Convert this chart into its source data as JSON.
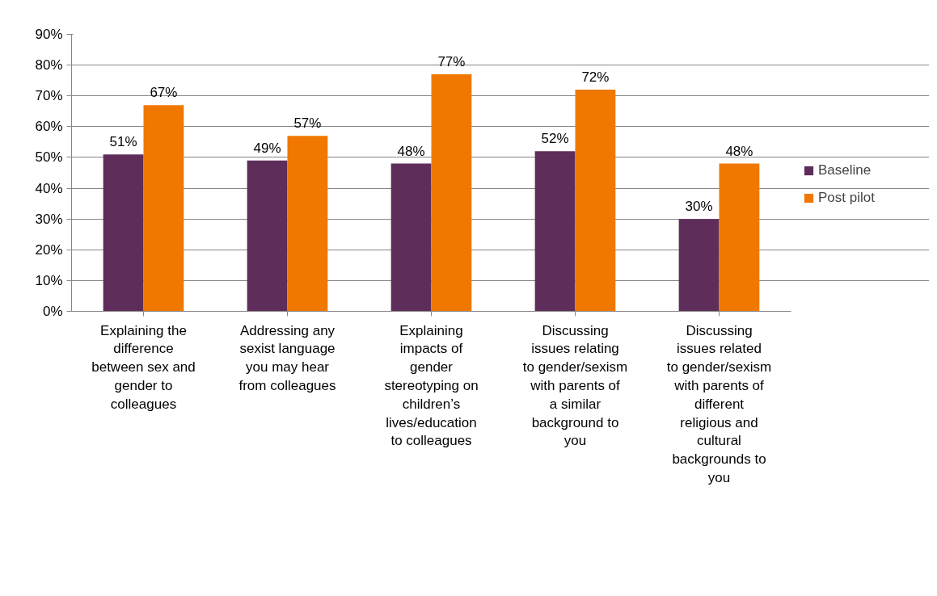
{
  "chart_data": {
    "type": "bar",
    "categories": [
      "Explaining the difference between sex and gender to colleagues",
      "Addressing any sexist language you may hear from colleagues",
      "Explaining impacts of gender stereotyping on children’s lives/education to colleagues",
      "Discussing issues relating to gender/sexism with parents of a similar background to you",
      "Discussing issues related to gender/sexism with parents of different religious and cultural backgrounds to you"
    ],
    "series": [
      {
        "name": "Baseline",
        "color": "#5f2d5a",
        "values": [
          51,
          49,
          48,
          52,
          30
        ],
        "value_labels": [
          "51%",
          "49%",
          "48%",
          "52%",
          "30%"
        ]
      },
      {
        "name": "Post pilot",
        "color": "#f07800",
        "values": [
          67,
          57,
          77,
          72,
          48
        ],
        "value_labels": [
          "67%",
          "57%",
          "77%",
          "72%",
          "48%"
        ]
      }
    ],
    "ylim": [
      0,
      90
    ],
    "yticks": [
      {
        "value": 0,
        "label": "0%"
      },
      {
        "value": 10,
        "label": "10%"
      },
      {
        "value": 20,
        "label": "20%"
      },
      {
        "value": 30,
        "label": "30%"
      },
      {
        "value": 40,
        "label": "40%"
      },
      {
        "value": 50,
        "label": "50%"
      },
      {
        "value": 60,
        "label": "60%"
      },
      {
        "value": 70,
        "label": "70%"
      },
      {
        "value": 80,
        "label": "80%"
      },
      {
        "value": 90,
        "label": "90%"
      }
    ],
    "grid": "y",
    "legend": "right"
  }
}
